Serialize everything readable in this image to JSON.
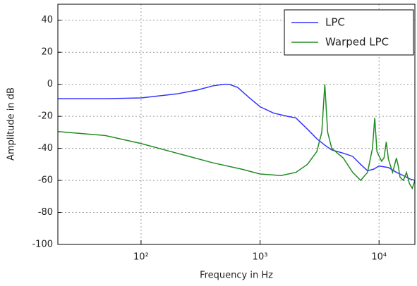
{
  "chart_data": {
    "type": "line",
    "xlabel": "Frequency in Hz",
    "ylabel": "Amplitude in dB",
    "xscale": "log",
    "grid": true,
    "legend": "upper right",
    "xlim": [
      20,
      20000
    ],
    "ylim": [
      -100,
      50
    ],
    "xticks": [
      {
        "value": 100,
        "label": "10²"
      },
      {
        "value": 1000,
        "label": "10³"
      },
      {
        "value": 10000,
        "label": "10⁴"
      }
    ],
    "yticks": [
      -100,
      -80,
      -60,
      -40,
      -20,
      0,
      20,
      40
    ],
    "series": [
      {
        "name": "LPC",
        "color": "#3333ff",
        "x": [
          20,
          50,
          100,
          200,
          300,
          400,
          500,
          550,
          650,
          800,
          1000,
          1300,
          1700,
          2000,
          2500,
          3000,
          3500,
          4000,
          5000,
          6000,
          7000,
          8000,
          9000,
          10000,
          12000,
          14000,
          16000,
          18000,
          20000
        ],
        "values": [
          -9,
          -9,
          -8.5,
          -6,
          -3.5,
          -1,
          0,
          0,
          -2,
          -8,
          -14,
          -18,
          -20,
          -21,
          -28,
          -34,
          -38,
          -41,
          -43,
          -45,
          -50,
          -54,
          -53,
          -51,
          -52,
          -55,
          -57,
          -59,
          -60
        ]
      },
      {
        "name": "Warped LPC",
        "color": "#228b22",
        "x": [
          20,
          50,
          100,
          200,
          400,
          700,
          1000,
          1500,
          2000,
          2500,
          3000,
          3300,
          3500,
          3700,
          4000,
          5000,
          6000,
          7000,
          8000,
          8800,
          9200,
          9600,
          10500,
          11000,
          11500,
          12000,
          13000,
          14000,
          14500,
          15000,
          16000,
          17000,
          18000,
          19000,
          20000
        ],
        "values": [
          -29.5,
          -32,
          -37,
          -43,
          -49,
          -53,
          -56,
          -57,
          -55,
          -50,
          -42,
          -30,
          0,
          -30,
          -40,
          -46,
          -55,
          -60,
          -55,
          -40,
          -21,
          -42,
          -48,
          -46,
          -36,
          -47,
          -55,
          -46,
          -51,
          -58,
          -60,
          -55,
          -62,
          -65,
          -60
        ]
      }
    ]
  }
}
